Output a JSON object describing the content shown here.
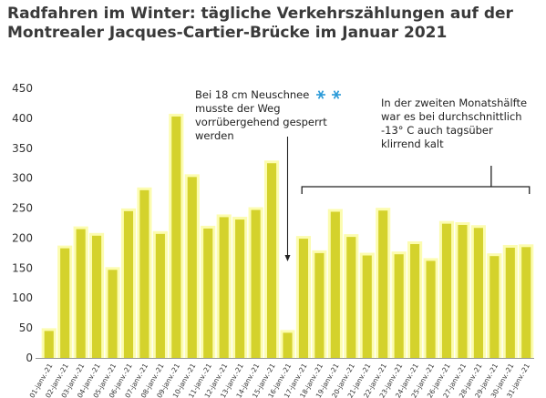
{
  "title_line1": "Radfahren im Winter: tägliche Verkehrszählungen auf der",
  "title_line2": "Montrealer Jacques-Cartier-Brücke im Januar 2021",
  "colors": {
    "bar": "#d4d22c",
    "bar_glow": "#fbfb9c",
    "axis": "#999999",
    "text": "#333333"
  },
  "chart_data": {
    "type": "bar",
    "categories": [
      "01-janv.-21",
      "02-janv.-21",
      "03-janv.-21",
      "04-janv.-21",
      "05-janv.-21",
      "06-janv.-21",
      "07-janv.-21",
      "08-janv.-21",
      "09-janv.-21",
      "10-janv.-21",
      "11-janv.-21",
      "12-janv.-21",
      "13-janv.-21",
      "14-janv.-21",
      "15-janv.-21",
      "16-janv.-21",
      "17-janv.-21",
      "18-janv.-21",
      "19-janv.-21",
      "20-janv.-21",
      "21-janv.-21",
      "22-janv.-21",
      "23-janv.-21",
      "24-janv.-21",
      "25-janv.-21",
      "26-janv.-21",
      "27-janv.-21",
      "28-janv.-21",
      "29-janv.-21",
      "30-janv.-21",
      "31-janv.-21"
    ],
    "values": [
      45,
      183,
      215,
      204,
      147,
      245,
      280,
      207,
      403,
      302,
      216,
      235,
      231,
      247,
      325,
      42,
      199,
      175,
      244,
      202,
      171,
      246,
      173,
      190,
      162,
      224,
      222,
      217,
      170,
      184,
      185
    ],
    "ylim": [
      0,
      450
    ],
    "yticks": [
      0,
      50,
      100,
      150,
      200,
      250,
      300,
      350,
      400,
      450
    ],
    "grid": false,
    "annotations": [
      {
        "lines": [
          "Bei 18 cm Neuschnee",
          "musste der Weg",
          "vorrübergehend gesperrt",
          "werden"
        ]
      },
      {
        "lines": [
          "In der zweiten Monatshälfte",
          "war es bei durchschnittlich",
          "-13° C auch tagsüber",
          "klirrend kalt"
        ]
      }
    ]
  }
}
